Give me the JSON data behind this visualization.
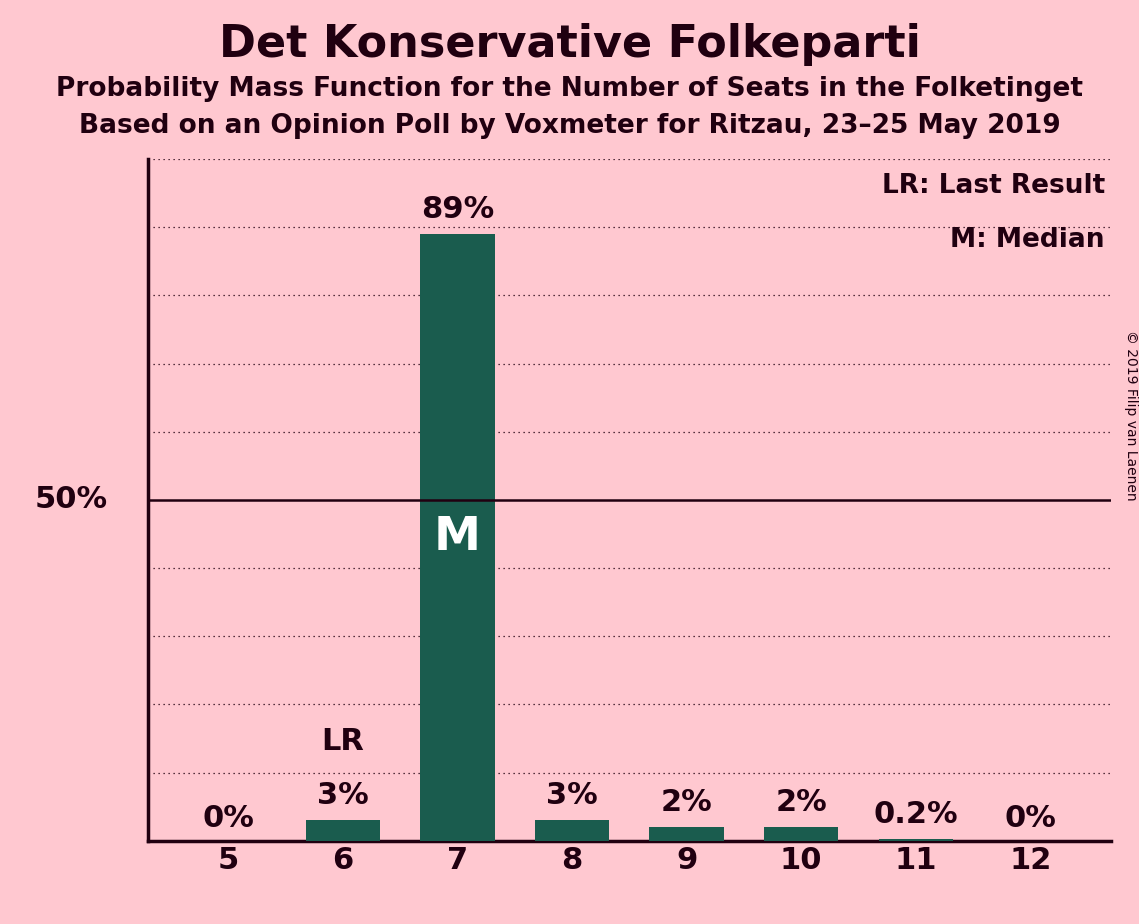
{
  "title": "Det Konservative Folkeparti",
  "subtitle1": "Probability Mass Function for the Number of Seats in the Folketinget",
  "subtitle2": "Based on an Opinion Poll by Voxmeter for Ritzau, 23–25 May 2019",
  "copyright": "© 2019 Filip van Laenen",
  "categories": [
    5,
    6,
    7,
    8,
    9,
    10,
    11,
    12
  ],
  "values": [
    0.0,
    3.0,
    89.0,
    3.0,
    2.0,
    2.0,
    0.2,
    0.0
  ],
  "bar_color": "#1a5c4e",
  "background_color": "#ffc8d0",
  "median_seat": 7,
  "last_result_seat": 6,
  "legend_lr": "LR: Last Result",
  "legend_m": "M: Median",
  "bar_labels": [
    "0%",
    "3%",
    "89%",
    "3%",
    "2%",
    "2%",
    "0.2%",
    "0%"
  ],
  "ylim": [
    0,
    100
  ],
  "yticks": [
    0,
    10,
    20,
    30,
    40,
    50,
    60,
    70,
    80,
    90,
    100
  ],
  "title_fontsize": 32,
  "subtitle_fontsize": 19,
  "tick_fontsize": 22,
  "bar_label_fontsize": 22,
  "legend_fontsize": 19,
  "copyright_fontsize": 10,
  "m_fontsize": 34,
  "lr_fontsize": 22,
  "text_color": "#200010"
}
